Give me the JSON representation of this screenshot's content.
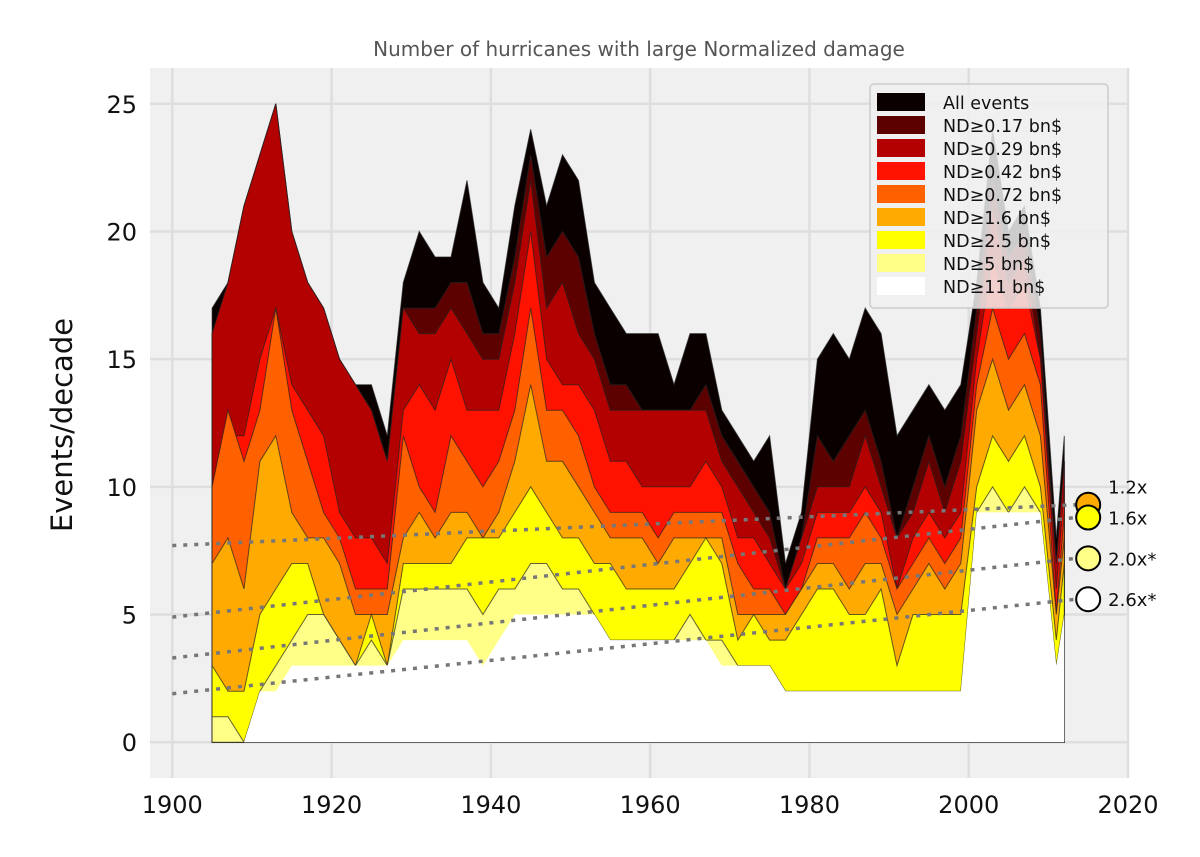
{
  "chart_data": {
    "type": "area",
    "title": "Number of hurricanes with large Normalized damage",
    "xlabel": "",
    "ylabel": "Events/decade",
    "xlim": [
      1897.2,
      2020
    ],
    "ylim": [
      -1.4,
      26.4
    ],
    "xticks": [
      1900,
      1920,
      1940,
      1960,
      1980,
      2000,
      2020
    ],
    "yticks": [
      0,
      5,
      10,
      15,
      20,
      25
    ],
    "grid": true,
    "legend_position": "top-right",
    "x": [
      1905,
      1907,
      1909,
      1911,
      1913,
      1915,
      1917,
      1919,
      1921,
      1923,
      1925,
      1927,
      1929,
      1931,
      1933,
      1935,
      1937,
      1939,
      1941,
      1943,
      1945,
      1947,
      1949,
      1951,
      1953,
      1955,
      1957,
      1959,
      1961,
      1963,
      1965,
      1967,
      1969,
      1971,
      1973,
      1975,
      1977,
      1979,
      1981,
      1983,
      1985,
      1987,
      1989,
      1991,
      1993,
      1995,
      1997,
      1999,
      2001,
      2003,
      2005,
      2007,
      2009,
      2011,
      2012
    ],
    "series": [
      {
        "name": "All events",
        "color": "#0a0000",
        "values": [
          17,
          18,
          21,
          23,
          25,
          20,
          18,
          17,
          15,
          14,
          14,
          12,
          18,
          20,
          19,
          19,
          22,
          18,
          17,
          21,
          24,
          21,
          23,
          22,
          18,
          17,
          16,
          16,
          16,
          14,
          16,
          16,
          13,
          12,
          11,
          12,
          7,
          9,
          15,
          16,
          15,
          17,
          16,
          12,
          13,
          14,
          13,
          14,
          18,
          24,
          20,
          21,
          17,
          8,
          12
        ]
      },
      {
        "name": "ND≥0.17 bn$",
        "color": "#5c0000",
        "values": [
          16,
          18,
          21,
          23,
          25,
          20,
          18,
          17,
          15,
          14,
          13,
          11,
          17,
          17,
          17,
          18,
          18,
          16,
          16,
          19,
          23,
          19,
          20,
          19,
          16,
          14,
          14,
          13,
          13,
          13,
          13,
          14,
          12,
          11,
          10,
          9,
          6,
          8,
          12,
          11,
          12,
          13,
          11,
          8,
          10,
          12,
          10,
          12,
          17,
          22,
          19,
          20,
          16,
          7,
          11
        ]
      },
      {
        "name": "ND≥0.29 bn$",
        "color": "#b30000",
        "values": [
          16,
          18,
          21,
          23,
          25,
          20,
          18,
          17,
          15,
          14,
          13,
          11,
          17,
          16,
          16,
          17,
          16,
          15,
          15,
          18,
          22,
          17,
          18,
          16,
          15,
          13,
          13,
          13,
          13,
          13,
          13,
          13,
          11,
          10,
          9,
          8,
          6,
          8,
          10,
          10,
          10,
          12,
          10,
          8,
          9,
          11,
          9,
          11,
          16,
          21,
          18,
          19,
          15,
          7,
          11
        ]
      },
      {
        "name": "ND≥0.42 bn$",
        "color": "#ff1200",
        "values": [
          10,
          12,
          12,
          15,
          17,
          14,
          13,
          12,
          9,
          8,
          8,
          7,
          13,
          14,
          13,
          15,
          13,
          13,
          13,
          16,
          20,
          15,
          14,
          14,
          13,
          11,
          11,
          10,
          10,
          10,
          10,
          11,
          10,
          8,
          8,
          7,
          6,
          7,
          9,
          9,
          9,
          10,
          9,
          6,
          8,
          9,
          8,
          9,
          15,
          19,
          17,
          18,
          15,
          6,
          10
        ]
      },
      {
        "name": "ND≥0.72 bn$",
        "color": "#ff6000",
        "values": [
          10,
          13,
          11,
          13,
          17,
          13,
          11,
          9,
          8,
          6,
          6,
          6,
          12,
          10,
          9,
          12,
          11,
          10,
          11,
          13,
          17,
          13,
          13,
          12,
          10,
          9,
          9,
          9,
          8,
          9,
          9,
          9,
          9,
          7,
          6,
          6,
          5,
          6,
          8,
          8,
          8,
          9,
          8,
          6,
          7,
          8,
          7,
          8,
          14,
          17,
          15,
          16,
          14,
          5,
          9
        ]
      },
      {
        "name": "ND≥1.6 bn$",
        "color": "#ffaa00",
        "values": [
          7,
          8,
          6,
          11,
          12,
          9,
          8,
          8,
          7,
          5,
          5,
          5,
          8,
          9,
          8,
          9,
          9,
          8,
          9,
          11,
          14,
          11,
          11,
          10,
          9,
          8,
          8,
          8,
          7,
          8,
          8,
          8,
          8,
          5,
          5,
          5,
          5,
          6,
          7,
          7,
          6,
          7,
          7,
          5,
          6,
          7,
          6,
          7,
          13,
          15,
          13,
          14,
          12,
          5,
          8
        ]
      },
      {
        "name": "ND≥2.5 bn$",
        "color": "#ffff00",
        "values": [
          3,
          2,
          2,
          5,
          6,
          7,
          7,
          5,
          4,
          3,
          5,
          3,
          7,
          7,
          7,
          7,
          8,
          8,
          8,
          9,
          10,
          9,
          8,
          8,
          7,
          7,
          6,
          6,
          6,
          6,
          7,
          8,
          7,
          4,
          5,
          4,
          4,
          5,
          6,
          6,
          5,
          5,
          6,
          3,
          5,
          5,
          5,
          5,
          10,
          12,
          11,
          12,
          10,
          4,
          7
        ]
      },
      {
        "name": "ND≥5 bn$",
        "color": "#ffff88",
        "values": [
          1,
          1,
          0,
          2,
          3,
          4,
          5,
          5,
          4,
          3,
          4,
          3,
          6,
          6,
          6,
          6,
          6,
          5,
          6,
          6,
          7,
          7,
          6,
          6,
          5,
          4,
          4,
          4,
          4,
          4,
          5,
          4,
          4,
          3,
          3,
          3,
          2,
          2,
          2,
          2,
          2,
          2,
          2,
          2,
          2,
          2,
          2,
          2,
          9,
          10,
          9,
          10,
          9,
          3,
          5
        ]
      },
      {
        "name": "ND≥11 bn$",
        "color": "#ffffff",
        "values": [
          0,
          0,
          0,
          2,
          2,
          3,
          3,
          3,
          3,
          3,
          3,
          3,
          4,
          4,
          4,
          4,
          4,
          3,
          4,
          5,
          5,
          5,
          5,
          5,
          5,
          4,
          4,
          4,
          4,
          4,
          4,
          4,
          3,
          3,
          3,
          3,
          2,
          2,
          2,
          2,
          2,
          2,
          2,
          2,
          2,
          2,
          2,
          2,
          9,
          9,
          9,
          9,
          9,
          3,
          5
        ]
      }
    ],
    "trends": [
      {
        "label": "1.2x",
        "color": "#ffaa00",
        "start": [
          1900,
          7.7
        ],
        "end": [
          2015,
          9.3
        ]
      },
      {
        "label": "1.6x",
        "color": "#ffff00",
        "start": [
          1900,
          4.9
        ],
        "end": [
          2015,
          8.8
        ]
      },
      {
        "label": "2.0x*",
        "color": "#ffff88",
        "start": [
          1900,
          3.3
        ],
        "end": [
          2015,
          7.2
        ]
      },
      {
        "label": "2.6x*",
        "color": "#ffffff",
        "start": [
          1900,
          1.9
        ],
        "end": [
          2015,
          5.6
        ]
      }
    ]
  }
}
